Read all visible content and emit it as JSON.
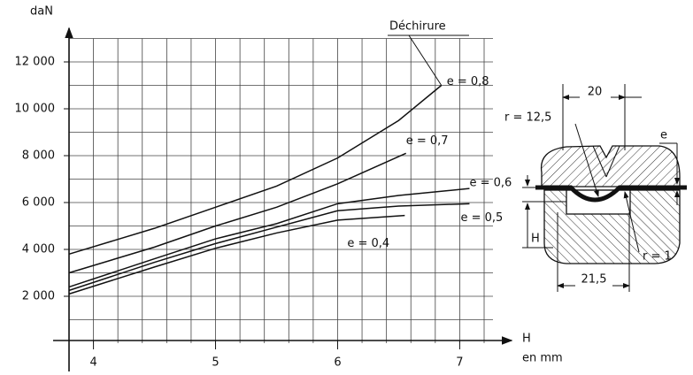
{
  "chart_data": {
    "type": "line",
    "y_label": "daN",
    "x_label": "H",
    "x_unit": "en mm",
    "annotation": "Déchirure",
    "xlim": [
      3.8,
      7.2
    ],
    "ylim": [
      0,
      13000
    ],
    "xticks": [
      4,
      5,
      6,
      7
    ],
    "yticks": [
      {
        "value": 2000,
        "label": "2 000"
      },
      {
        "value": 4000,
        "label": "4 000"
      },
      {
        "value": 6000,
        "label": "6 000"
      },
      {
        "value": 8000,
        "label": "8 000"
      },
      {
        "value": 10000,
        "label": "10 000"
      },
      {
        "value": 12000,
        "label": "12 000"
      }
    ],
    "x_grid": [
      3.8,
      4.0,
      4.2,
      4.4,
      4.6,
      4.8,
      5.0,
      5.2,
      5.4,
      5.6,
      5.8,
      6.0,
      6.2,
      6.4,
      6.6,
      6.8,
      7.0,
      7.2
    ],
    "y_grid": [
      1000,
      2000,
      3000,
      4000,
      5000,
      6000,
      7000,
      8000,
      9000,
      10000,
      11000,
      12000,
      13000
    ],
    "grid": true,
    "series": [
      {
        "name": "e = 0,8",
        "color": "#111111",
        "x": [
          3.8,
          4.5,
          5.0,
          5.5,
          6.0,
          6.5,
          6.85
        ],
        "values": [
          3800,
          4900,
          5800,
          6700,
          7900,
          9500,
          11000
        ]
      },
      {
        "name": "e = 0,7",
        "color": "#111111",
        "x": [
          3.8,
          4.5,
          5.0,
          5.5,
          6.0,
          6.56
        ],
        "values": [
          3000,
          4100,
          5000,
          5800,
          6800,
          8100
        ]
      },
      {
        "name": "e = 0,6",
        "color": "#111111",
        "x": [
          3.8,
          4.5,
          5.0,
          5.5,
          6.0,
          6.5,
          7.08
        ],
        "values": [
          2400,
          3600,
          4450,
          5100,
          5950,
          6300,
          6600
        ]
      },
      {
        "name": "e = 0,5",
        "color": "#111111",
        "x": [
          3.8,
          4.5,
          5.0,
          5.5,
          6.0,
          6.5,
          7.08
        ],
        "values": [
          2250,
          3450,
          4250,
          4950,
          5650,
          5850,
          5950
        ]
      },
      {
        "name": "e = 0,4",
        "color": "#111111",
        "x": [
          3.8,
          4.5,
          5.0,
          5.5,
          6.0,
          6.55
        ],
        "values": [
          2100,
          3250,
          4050,
          4700,
          5250,
          5450
        ]
      }
    ]
  },
  "diagram": {
    "width": "20",
    "radius_large": "r = 12,5",
    "thickness": "e",
    "height": "H",
    "width_bottom": "21,5",
    "radius_small": "r = 1"
  }
}
